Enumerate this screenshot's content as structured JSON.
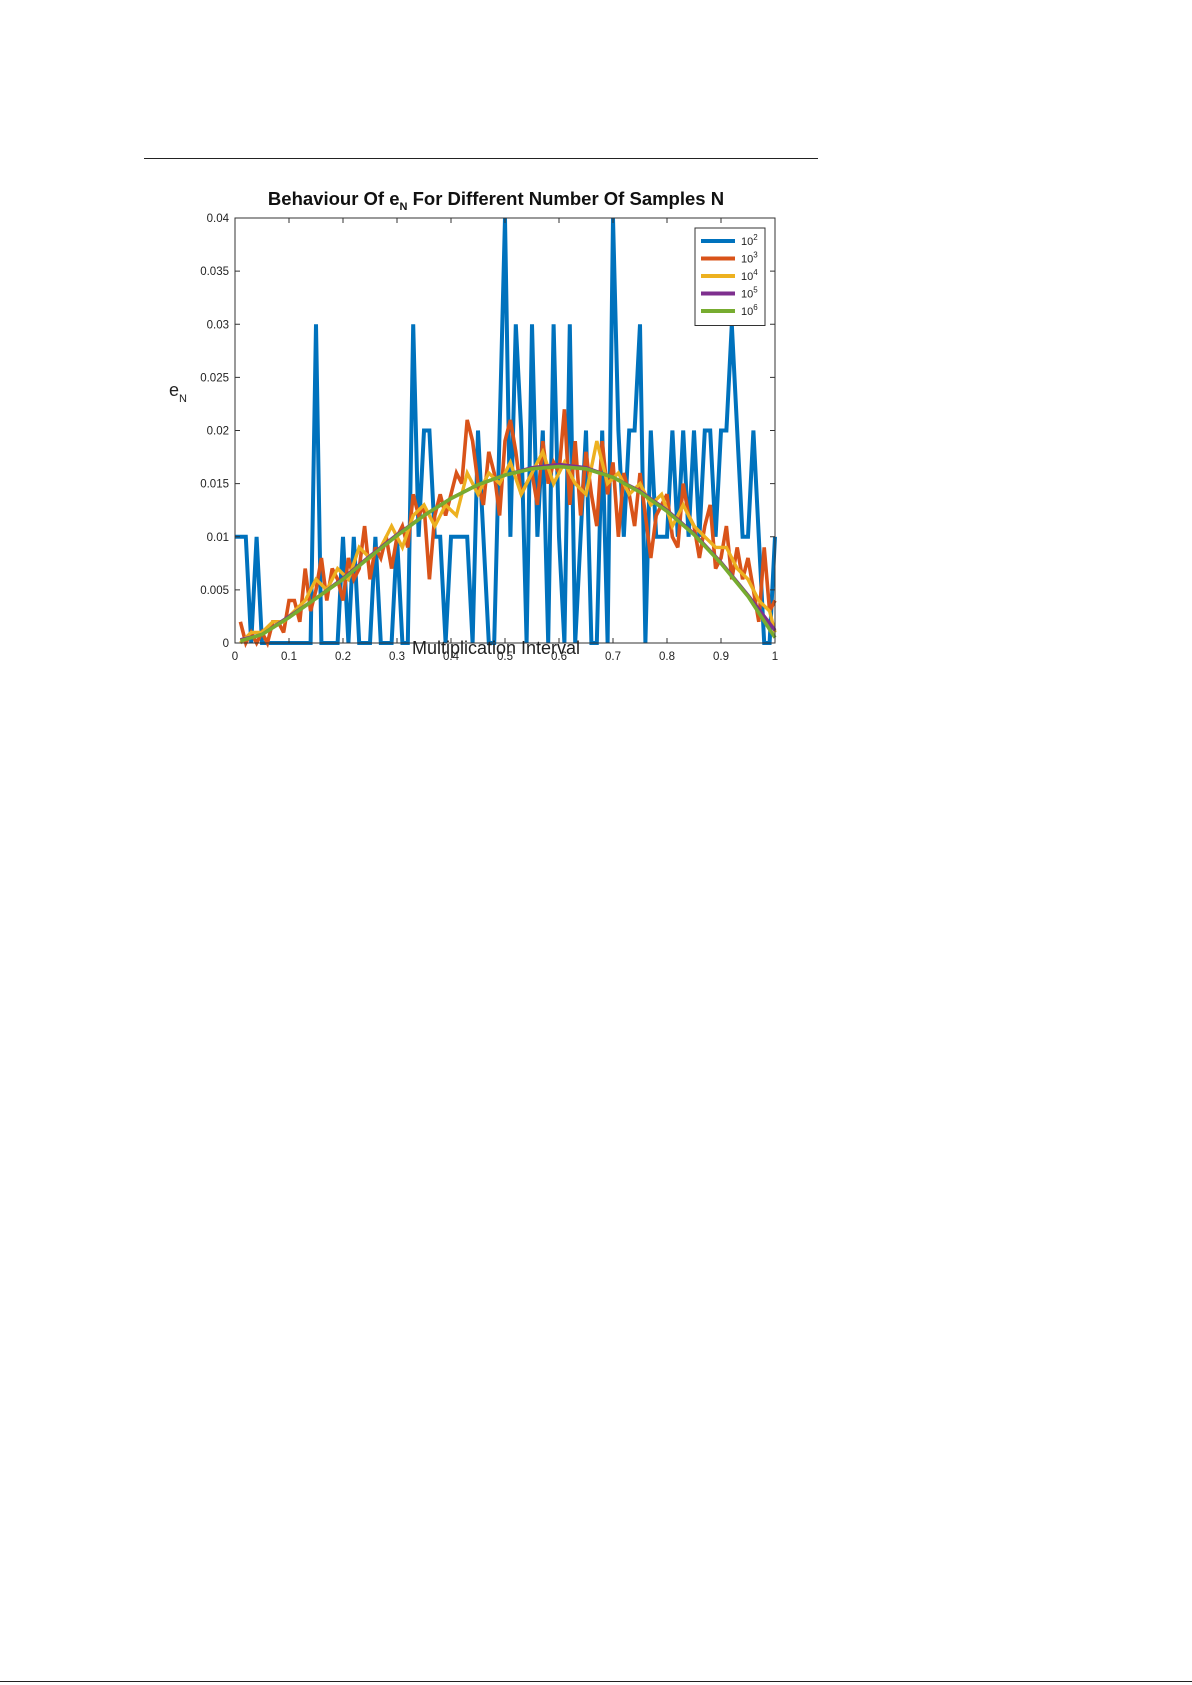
{
  "chart_data": {
    "type": "line",
    "title": {
      "prefix": "Behaviour Of e",
      "subscript": "N",
      "suffix": " For Different Number Of Samples N"
    },
    "xlabel": "Multiplication Interval",
    "ylabel": {
      "base": "e",
      "subscript": "N"
    },
    "xlim": [
      0,
      1
    ],
    "ylim": [
      0,
      0.04
    ],
    "xticks": [
      0,
      0.1,
      0.2,
      0.3,
      0.4,
      0.5,
      0.6,
      0.7,
      0.8,
      0.9,
      1
    ],
    "xtick_labels": [
      "0",
      "0.1",
      "0.2",
      "0.3",
      "0.4",
      "0.5",
      "0.6",
      "0.7",
      "0.8",
      "0.9",
      "1"
    ],
    "yticks": [
      0,
      0.005,
      0.01,
      0.015,
      0.02,
      0.025,
      0.03,
      0.035,
      0.04
    ],
    "ytick_labels": [
      "0",
      "0.005",
      "0.01",
      "0.015",
      "0.02",
      "0.025",
      "0.03",
      "0.035",
      "0.04"
    ],
    "grid": false,
    "legend_position": "top-right",
    "series": [
      {
        "name": "10^2",
        "legend_base": "10",
        "legend_exp": "2",
        "color": "#0072BD",
        "x": [
          0,
          0.02,
          0.03,
          0.04,
          0.05,
          0.06,
          0.07,
          0.08,
          0.09,
          0.1,
          0.11,
          0.12,
          0.13,
          0.14,
          0.15,
          0.16,
          0.17,
          0.18,
          0.19,
          0.2,
          0.21,
          0.22,
          0.23,
          0.24,
          0.25,
          0.26,
          0.27,
          0.28,
          0.29,
          0.3,
          0.31,
          0.32,
          0.33,
          0.34,
          0.35,
          0.36,
          0.37,
          0.38,
          0.39,
          0.4,
          0.41,
          0.42,
          0.43,
          0.44,
          0.45,
          0.46,
          0.47,
          0.48,
          0.49,
          0.5,
          0.51,
          0.52,
          0.53,
          0.54,
          0.55,
          0.56,
          0.57,
          0.58,
          0.59,
          0.6,
          0.61,
          0.62,
          0.63,
          0.64,
          0.65,
          0.66,
          0.67,
          0.68,
          0.69,
          0.7,
          0.71,
          0.72,
          0.73,
          0.74,
          0.75,
          0.76,
          0.77,
          0.78,
          0.79,
          0.8,
          0.81,
          0.82,
          0.83,
          0.84,
          0.85,
          0.86,
          0.87,
          0.88,
          0.89,
          0.9,
          0.91,
          0.92,
          0.93,
          0.94,
          0.95,
          0.96,
          0.97,
          0.98,
          0.99,
          1
        ],
        "y": [
          0.01,
          0.01,
          0,
          0.01,
          0,
          0,
          0,
          0,
          0,
          0,
          0,
          0,
          0,
          0,
          0.03,
          0,
          0,
          0,
          0,
          0.01,
          0,
          0.01,
          0,
          0,
          0,
          0.01,
          0,
          0,
          0,
          0.01,
          0,
          0,
          0.03,
          0.01,
          0.02,
          0.02,
          0.01,
          0.01,
          0,
          0.01,
          0.01,
          0.01,
          0.01,
          0,
          0.02,
          0.01,
          0,
          0,
          0.02,
          0.04,
          0.01,
          0.03,
          0.02,
          0,
          0.03,
          0.01,
          0.02,
          0,
          0.03,
          0.01,
          0,
          0.03,
          0,
          0.01,
          0.02,
          0,
          0,
          0.02,
          0,
          0.04,
          0.02,
          0.01,
          0.02,
          0.02,
          0.03,
          0,
          0.02,
          0.01,
          0.01,
          0.01,
          0.02,
          0.01,
          0.02,
          0.01,
          0.02,
          0.01,
          0.02,
          0.02,
          0.01,
          0.02,
          0.02,
          0.03,
          0.02,
          0.01,
          0.01,
          0.02,
          0.01,
          0,
          0,
          0.01
        ]
      },
      {
        "name": "10^3",
        "legend_base": "10",
        "legend_exp": "3",
        "color": "#D95319",
        "x": [
          0.01,
          0.02,
          0.03,
          0.04,
          0.05,
          0.06,
          0.07,
          0.08,
          0.09,
          0.1,
          0.11,
          0.12,
          0.13,
          0.14,
          0.15,
          0.16,
          0.17,
          0.18,
          0.19,
          0.2,
          0.21,
          0.22,
          0.23,
          0.24,
          0.25,
          0.26,
          0.27,
          0.28,
          0.29,
          0.3,
          0.31,
          0.32,
          0.33,
          0.34,
          0.35,
          0.36,
          0.37,
          0.38,
          0.39,
          0.4,
          0.41,
          0.42,
          0.43,
          0.44,
          0.45,
          0.46,
          0.47,
          0.48,
          0.49,
          0.5,
          0.51,
          0.52,
          0.53,
          0.54,
          0.55,
          0.56,
          0.57,
          0.58,
          0.59,
          0.6,
          0.61,
          0.62,
          0.63,
          0.64,
          0.65,
          0.66,
          0.67,
          0.68,
          0.69,
          0.7,
          0.71,
          0.72,
          0.73,
          0.74,
          0.75,
          0.76,
          0.77,
          0.78,
          0.79,
          0.8,
          0.81,
          0.82,
          0.83,
          0.84,
          0.85,
          0.86,
          0.87,
          0.88,
          0.89,
          0.9,
          0.91,
          0.92,
          0.93,
          0.94,
          0.95,
          0.96,
          0.97,
          0.98,
          0.99,
          1
        ],
        "y": [
          0.002,
          0,
          0.001,
          0,
          0.001,
          0,
          0.002,
          0.002,
          0.001,
          0.004,
          0.004,
          0.002,
          0.007,
          0.003,
          0.005,
          0.008,
          0.004,
          0.007,
          0.006,
          0.004,
          0.008,
          0.006,
          0.007,
          0.011,
          0.006,
          0.009,
          0.008,
          0.01,
          0.007,
          0.01,
          0.011,
          0.009,
          0.014,
          0.012,
          0.013,
          0.006,
          0.012,
          0.014,
          0.012,
          0.014,
          0.016,
          0.015,
          0.021,
          0.019,
          0.015,
          0.013,
          0.018,
          0.016,
          0.012,
          0.019,
          0.021,
          0.018,
          0.014,
          0.015,
          0.016,
          0.013,
          0.019,
          0.015,
          0.017,
          0.016,
          0.022,
          0.013,
          0.019,
          0.012,
          0.018,
          0.014,
          0.011,
          0.019,
          0.014,
          0.017,
          0.01,
          0.016,
          0.014,
          0.011,
          0.016,
          0.012,
          0.008,
          0.012,
          0.013,
          0.014,
          0.01,
          0.009,
          0.015,
          0.012,
          0.011,
          0.008,
          0.011,
          0.013,
          0.007,
          0.008,
          0.011,
          0.006,
          0.009,
          0.006,
          0.008,
          0.005,
          0.002,
          0.009,
          0.003,
          0.004
        ]
      },
      {
        "name": "10^4",
        "legend_base": "10",
        "legend_exp": "4",
        "color": "#EDB120",
        "x": [
          0.01,
          0.03,
          0.05,
          0.07,
          0.09,
          0.11,
          0.13,
          0.15,
          0.17,
          0.19,
          0.21,
          0.23,
          0.25,
          0.27,
          0.29,
          0.31,
          0.33,
          0.35,
          0.37,
          0.39,
          0.41,
          0.43,
          0.45,
          0.47,
          0.49,
          0.51,
          0.53,
          0.55,
          0.57,
          0.59,
          0.61,
          0.63,
          0.65,
          0.67,
          0.69,
          0.71,
          0.73,
          0.75,
          0.77,
          0.79,
          0.81,
          0.83,
          0.85,
          0.87,
          0.89,
          0.91,
          0.93,
          0.95,
          0.97,
          0.99,
          1
        ],
        "y": [
          0,
          0.001,
          0.001,
          0.002,
          0.002,
          0.003,
          0.004,
          0.006,
          0.005,
          0.007,
          0.006,
          0.009,
          0.008,
          0.009,
          0.011,
          0.009,
          0.012,
          0.013,
          0.011,
          0.013,
          0.012,
          0.016,
          0.014,
          0.016,
          0.015,
          0.017,
          0.014,
          0.016,
          0.018,
          0.015,
          0.017,
          0.015,
          0.014,
          0.019,
          0.015,
          0.016,
          0.014,
          0.015,
          0.013,
          0.014,
          0.011,
          0.013,
          0.011,
          0.01,
          0.009,
          0.009,
          0.007,
          0.006,
          0.004,
          0.003,
          0.001
        ]
      },
      {
        "name": "10^5",
        "legend_base": "10",
        "legend_exp": "5",
        "color": "#7E2F8E",
        "x": [
          0.01,
          0.05,
          0.1,
          0.15,
          0.2,
          0.25,
          0.3,
          0.35,
          0.4,
          0.45,
          0.5,
          0.55,
          0.6,
          0.65,
          0.7,
          0.75,
          0.8,
          0.85,
          0.9,
          0.95,
          1
        ],
        "y": [
          0.0003,
          0.0008,
          0.0025,
          0.0042,
          0.0061,
          0.0082,
          0.0102,
          0.012,
          0.0136,
          0.0149,
          0.0158,
          0.0165,
          0.0168,
          0.0165,
          0.0156,
          0.0143,
          0.0125,
          0.0103,
          0.0076,
          0.0045,
          0.0012
        ]
      },
      {
        "name": "10^6",
        "legend_base": "10",
        "legend_exp": "6",
        "color": "#77AC30",
        "x": [
          0.01,
          0.05,
          0.1,
          0.15,
          0.2,
          0.25,
          0.3,
          0.35,
          0.4,
          0.45,
          0.5,
          0.55,
          0.6,
          0.65,
          0.7,
          0.75,
          0.8,
          0.85,
          0.9,
          0.95,
          1
        ],
        "y": [
          0.0002,
          0.0008,
          0.0024,
          0.0042,
          0.006,
          0.0081,
          0.0101,
          0.012,
          0.0136,
          0.0149,
          0.0158,
          0.0164,
          0.0166,
          0.0164,
          0.0156,
          0.0142,
          0.0124,
          0.0102,
          0.0075,
          0.0044,
          0.0005
        ]
      }
    ]
  }
}
